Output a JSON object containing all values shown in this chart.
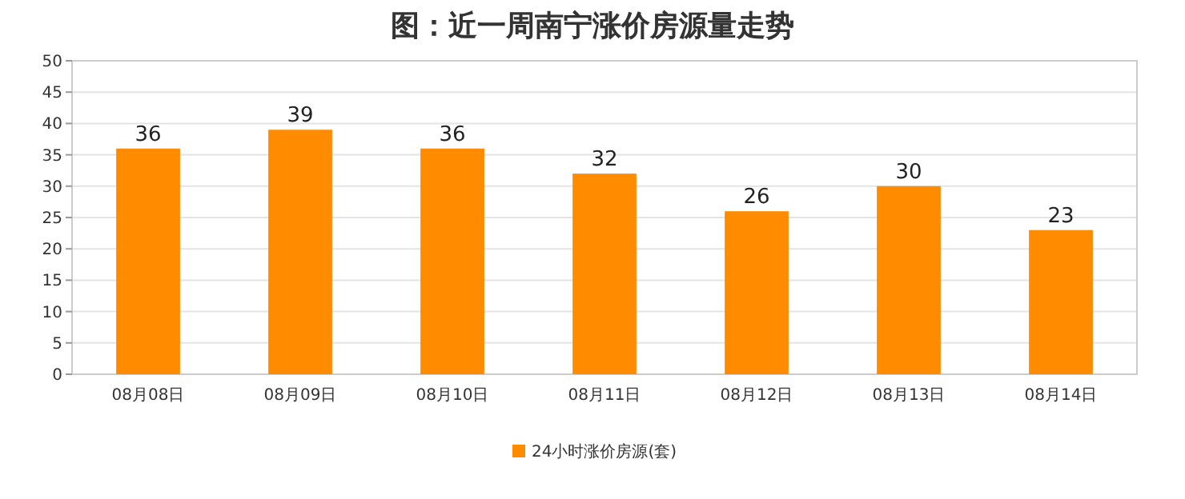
{
  "chart_data": {
    "type": "bar",
    "title": "图：近一周南宁涨价房源量走势",
    "categories": [
      "08月08日",
      "08月09日",
      "08月10日",
      "08月11日",
      "08月12日",
      "08月13日",
      "08月14日"
    ],
    "series": [
      {
        "name": "24小时涨价房源(套)",
        "color": "#ff8c00",
        "values": [
          36,
          39,
          36,
          32,
          26,
          30,
          23
        ]
      }
    ],
    "ylim": [
      0,
      50
    ],
    "yticks": [
      0,
      5,
      10,
      15,
      20,
      25,
      30,
      35,
      40,
      45,
      50
    ],
    "grid": "y",
    "legend": "bottom",
    "data_labels": true
  }
}
